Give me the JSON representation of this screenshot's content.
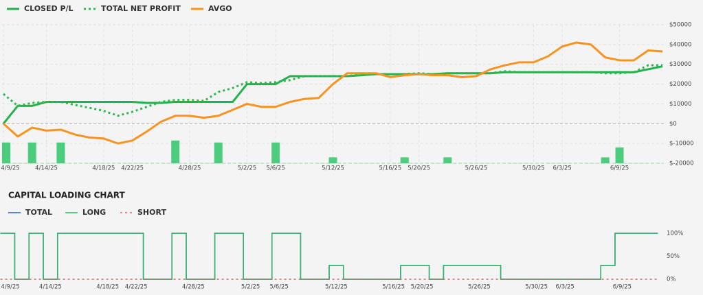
{
  "chart_data": [
    {
      "type": "line",
      "categories": [
        "4/9/25",
        null,
        null,
        "4/14/25",
        null,
        null,
        null,
        "4/18/25",
        null,
        "4/22/25",
        null,
        null,
        null,
        "4/28/25",
        null,
        null,
        null,
        "5/2/25",
        null,
        "5/6/25",
        null,
        null,
        null,
        "5/12/25",
        null,
        null,
        null,
        "5/16/25",
        null,
        "5/20/25",
        null,
        null,
        null,
        "5/26/25",
        null,
        null,
        null,
        "5/30/25",
        null,
        "6/3/25",
        null,
        null,
        null,
        "6/9/25",
        null,
        null,
        null
      ],
      "series": [
        {
          "name": "CLOSED P/L",
          "color": "#22b14c",
          "style": "solid",
          "values": [
            0,
            9000,
            9000,
            11000,
            11000,
            11000,
            11000,
            11000,
            11000,
            11000,
            10500,
            10500,
            11000,
            11000,
            11000,
            11000,
            11000,
            20000,
            20000,
            20000,
            24000,
            24000,
            24000,
            24000,
            24000,
            24500,
            25000,
            25000,
            25000,
            25000,
            25000,
            25500,
            25500,
            25500,
            25500,
            26000,
            26000,
            26000,
            26000,
            26000,
            26000,
            26000,
            26000,
            26000,
            26000,
            27500,
            29000
          ]
        },
        {
          "name": "TOTAL NET PROFIT",
          "color": "#2db84d",
          "style": "dotted",
          "values": [
            15000,
            9000,
            10500,
            11000,
            11000,
            9500,
            8000,
            6500,
            4000,
            6000,
            8500,
            11000,
            12000,
            12000,
            11500,
            16000,
            18000,
            21000,
            20500,
            21000,
            22000,
            24000,
            24000,
            24000,
            24000,
            25000,
            25000,
            25000,
            25000,
            25500,
            25000,
            25500,
            25500,
            25500,
            25500,
            26500,
            26000,
            26000,
            26000,
            26000,
            26000,
            26000,
            25500,
            25500,
            26000,
            29500,
            29500
          ]
        },
        {
          "name": "AVGO",
          "color": "#f7931e",
          "style": "solid",
          "values": [
            0,
            -6500,
            -2000,
            -3500,
            -3000,
            -5500,
            -7000,
            -7500,
            -10000,
            -8500,
            -4000,
            1000,
            4000,
            4000,
            3000,
            4000,
            7000,
            10000,
            8500,
            8500,
            11000,
            12500,
            13000,
            20000,
            25500,
            25500,
            25500,
            23500,
            24500,
            25000,
            24500,
            24500,
            23500,
            24000,
            27500,
            29500,
            31000,
            31000,
            34000,
            39000,
            41000,
            40000,
            33500,
            32000,
            32000,
            37000,
            36500
          ]
        }
      ],
      "bars": {
        "color": "#4ccd7d",
        "values": [
          -9500,
          null,
          -9500,
          null,
          -9500,
          null,
          null,
          null,
          null,
          null,
          null,
          null,
          -8500,
          null,
          null,
          -9500,
          null,
          null,
          null,
          -9500,
          null,
          null,
          null,
          -17000,
          null,
          null,
          null,
          null,
          -17000,
          null,
          null,
          -17000,
          null,
          null,
          null,
          null,
          null,
          null,
          null,
          null,
          null,
          null,
          -17000,
          -12000,
          null,
          null,
          null
        ]
      },
      "ylim": [
        -20000,
        50000
      ],
      "yticks": [
        {
          "value": -20000,
          "label": "$-20000"
        },
        {
          "value": -10000,
          "label": "$-10000"
        },
        {
          "value": 0,
          "label": "$0"
        },
        {
          "value": 10000,
          "label": "$10000"
        },
        {
          "value": 20000,
          "label": "$20000"
        },
        {
          "value": 30000,
          "label": "$30000"
        },
        {
          "value": 40000,
          "label": "$40000"
        },
        {
          "value": 50000,
          "label": "$50000"
        }
      ],
      "grid": true
    },
    {
      "type": "step",
      "title": "CAPITAL LOADING CHART",
      "categories": [
        "4/9/25",
        null,
        null,
        "4/14/25",
        null,
        null,
        null,
        "4/18/25",
        null,
        "4/22/25",
        null,
        null,
        null,
        "4/28/25",
        null,
        null,
        null,
        "5/2/25",
        null,
        "5/6/25",
        null,
        null,
        null,
        "5/12/25",
        null,
        null,
        null,
        "5/16/25",
        null,
        "5/20/25",
        null,
        null,
        null,
        "5/26/25",
        null,
        null,
        null,
        "5/30/25",
        null,
        "6/3/25",
        null,
        null,
        null,
        "6/9/25",
        null,
        null
      ],
      "series": [
        {
          "name": "TOTAL",
          "color": "#2a62c9",
          "style": "solid",
          "values": [
            100,
            0,
            100,
            0,
            100,
            100,
            100,
            100,
            100,
            100,
            0,
            0,
            100,
            0,
            0,
            100,
            100,
            0,
            0,
            100,
            100,
            0,
            0,
            30,
            0,
            0,
            0,
            0,
            30,
            30,
            0,
            30,
            30,
            30,
            30,
            0,
            0,
            0,
            0,
            0,
            0,
            0,
            30,
            100,
            100,
            100
          ]
        },
        {
          "name": "LONG",
          "color": "#2eb860",
          "style": "solid",
          "values": [
            100,
            0,
            100,
            0,
            100,
            100,
            100,
            100,
            100,
            100,
            0,
            0,
            100,
            0,
            0,
            100,
            100,
            0,
            0,
            100,
            100,
            0,
            0,
            30,
            0,
            0,
            0,
            0,
            30,
            30,
            0,
            30,
            30,
            30,
            30,
            0,
            0,
            0,
            0,
            0,
            0,
            0,
            30,
            100,
            100,
            100
          ]
        },
        {
          "name": "SHORT",
          "color": "#e06060",
          "style": "dotted",
          "values": [
            0,
            0,
            0,
            0,
            0,
            0,
            0,
            0,
            0,
            0,
            0,
            0,
            0,
            0,
            0,
            0,
            0,
            0,
            0,
            0,
            0,
            0,
            0,
            0,
            0,
            0,
            0,
            0,
            0,
            0,
            0,
            0,
            0,
            0,
            0,
            0,
            0,
            0,
            0,
            0,
            0,
            0,
            0,
            0,
            0,
            0
          ]
        }
      ],
      "ylim": [
        0,
        100
      ],
      "yticks": [
        {
          "value": 0,
          "label": "0%"
        },
        {
          "value": 50,
          "label": "50%"
        },
        {
          "value": 100,
          "label": "100%"
        }
      ],
      "grid": false
    }
  ]
}
